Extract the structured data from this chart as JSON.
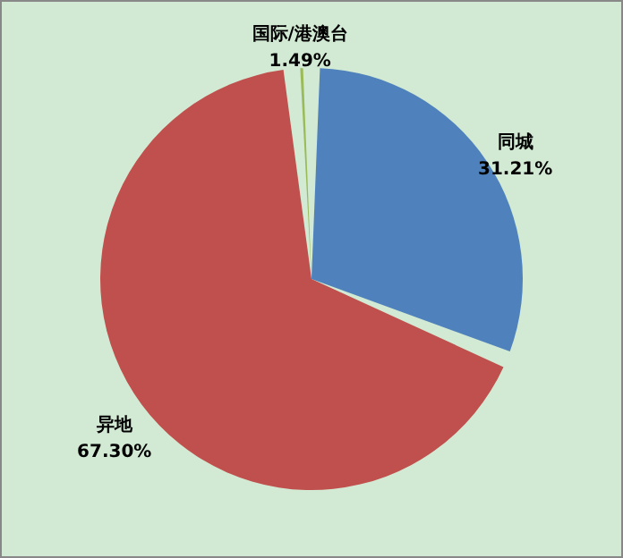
{
  "chart_data": {
    "type": "pie",
    "categories": [
      "同城",
      "异地",
      "国际/港澳台"
    ],
    "values": [
      31.21,
      67.3,
      1.49
    ],
    "value_labels": [
      "31.21%",
      "67.30%",
      "1.49%"
    ],
    "colors": [
      "#4f81bd",
      "#c0504d",
      "#9bbb59"
    ]
  }
}
